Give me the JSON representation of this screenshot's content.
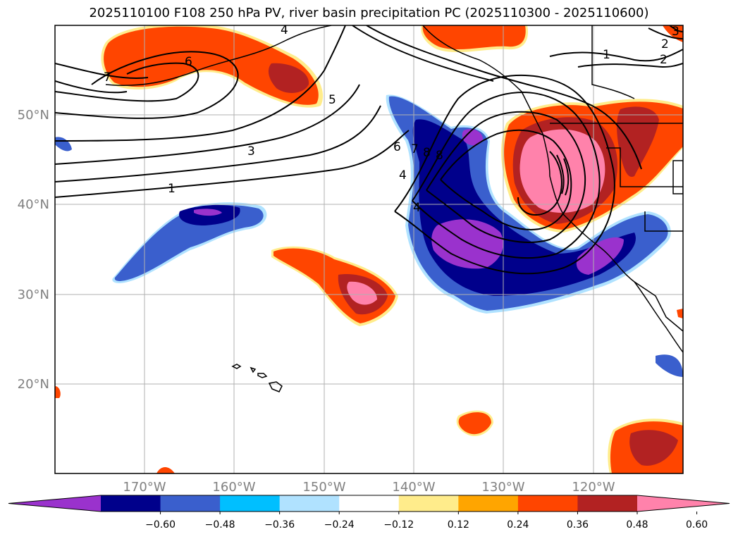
{
  "title": "2025110100 F108 250 hPa PV, river basin precipitation PC (2025110300 - 2025110600)",
  "map": {
    "lon_labels": [
      "170°W",
      "160°W",
      "150°W",
      "140°W",
      "130°W",
      "120°W"
    ],
    "lat_labels": [
      "50°N",
      "40°N",
      "30°N",
      "20°N"
    ],
    "contour_labels": [
      "1",
      "2",
      "3",
      "4",
      "5",
      "6",
      "7",
      "8",
      "1",
      "2",
      "3",
      "4",
      "6",
      "7",
      "8",
      "4"
    ]
  },
  "colorbar": {
    "ticks": [
      "−0.60",
      "−0.48",
      "−0.36",
      "−0.24",
      "−0.12",
      "0.12",
      "0.24",
      "0.36",
      "0.48",
      "0.60"
    ],
    "colors": [
      "#9a32cd",
      "#00008b",
      "#3a5fcd",
      "#00bfff",
      "#b0e2ff",
      "#ffffff",
      "#ffec8b",
      "#ffa500",
      "#ff4500",
      "#b22222",
      "#ff82ab"
    ]
  }
}
